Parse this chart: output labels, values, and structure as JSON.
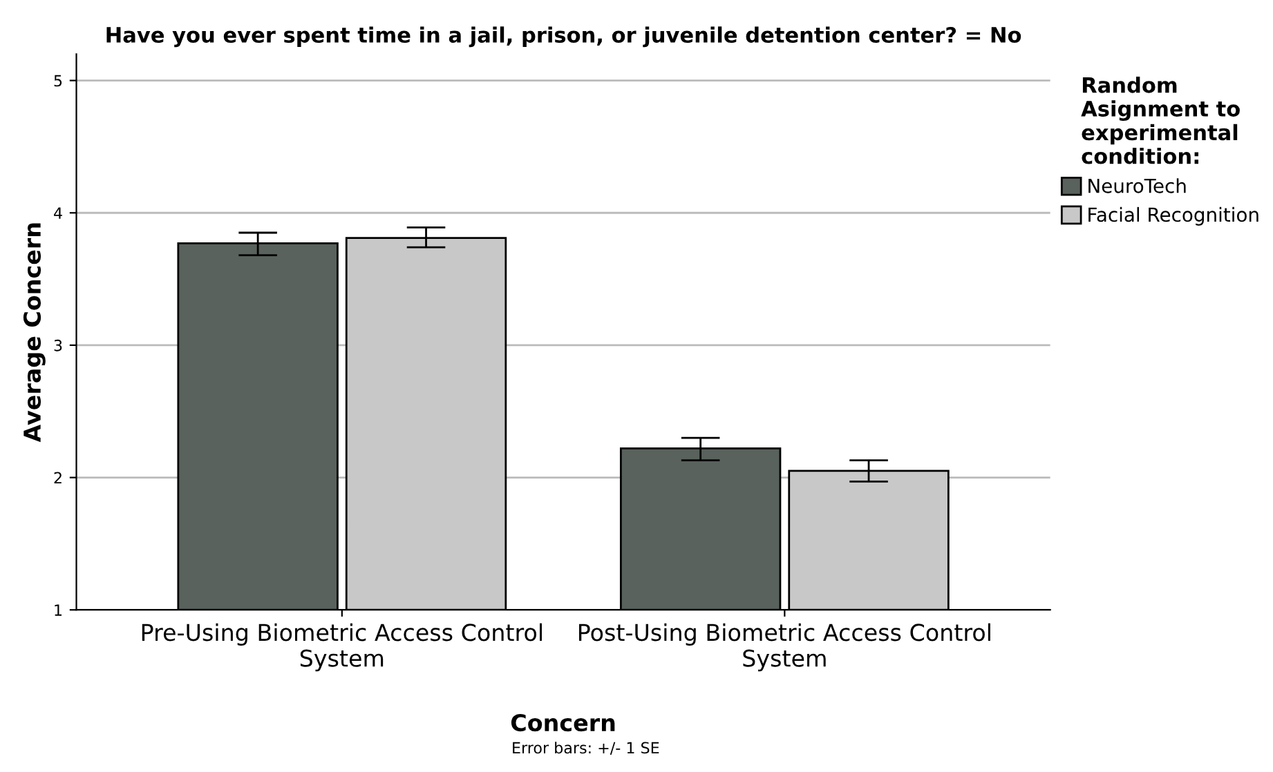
{
  "chart_data": {
    "type": "bar",
    "title": "Have you ever spent time in a jail, prison, or juvenile detention center? = No",
    "xlabel": "Concern",
    "ylabel": "Average Concern",
    "legend_title": "Random\nAsignment to\nexperimental\ncondition:",
    "categories": [
      "Pre-Using Biometric Access Control\nSystem",
      "Post-Using Biometric Access Control\nSystem"
    ],
    "series": [
      {
        "name": "NeuroTech",
        "color": "#59625c",
        "values": [
          3.77,
          2.22
        ],
        "errors": [
          [
            3.68,
            3.85
          ],
          [
            2.13,
            2.3
          ]
        ]
      },
      {
        "name": "Facial Recognition",
        "color": "#c8c8c8",
        "values": [
          3.81,
          2.05
        ],
        "errors": [
          [
            3.74,
            3.89
          ],
          [
            1.97,
            2.13
          ]
        ]
      }
    ],
    "ylim": [
      1,
      5.2
    ],
    "yticks": [
      1,
      2,
      3,
      4,
      5
    ],
    "grid": "y",
    "legend": "right",
    "annotations": [
      "Error bars: +/- 1 SE"
    ]
  }
}
